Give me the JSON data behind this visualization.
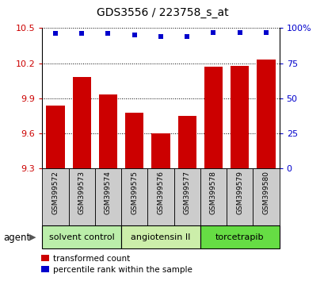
{
  "title": "GDS3556 / 223758_s_at",
  "categories": [
    "GSM399572",
    "GSM399573",
    "GSM399574",
    "GSM399575",
    "GSM399576",
    "GSM399577",
    "GSM399578",
    "GSM399579",
    "GSM399580"
  ],
  "bar_values": [
    9.84,
    10.08,
    9.93,
    9.78,
    9.6,
    9.75,
    10.17,
    10.18,
    10.23
  ],
  "percentile_values": [
    96,
    96,
    96,
    95,
    94,
    94,
    97,
    97,
    97
  ],
  "bar_color": "#cc0000",
  "dot_color": "#0000cc",
  "ylim_left": [
    9.3,
    10.5
  ],
  "ylim_right": [
    0,
    100
  ],
  "yticks_left": [
    9.3,
    9.6,
    9.9,
    10.2,
    10.5
  ],
  "yticks_right": [
    0,
    25,
    50,
    75,
    100
  ],
  "ytick_labels_right": [
    "0",
    "25",
    "50",
    "75",
    "100%"
  ],
  "groups": [
    {
      "label": "solvent control",
      "indices": [
        0,
        1,
        2
      ],
      "color": "#bbeeaa"
    },
    {
      "label": "angiotensin II",
      "indices": [
        3,
        4,
        5
      ],
      "color": "#cceeaa"
    },
    {
      "label": "torcetrapib",
      "indices": [
        6,
        7,
        8
      ],
      "color": "#66dd44"
    }
  ],
  "agent_label": "agent",
  "legend_bar_label": "transformed count",
  "legend_dot_label": "percentile rank within the sample",
  "bar_width": 0.7,
  "sample_box_color": "#cccccc",
  "xlim": [
    -0.5,
    8.5
  ]
}
